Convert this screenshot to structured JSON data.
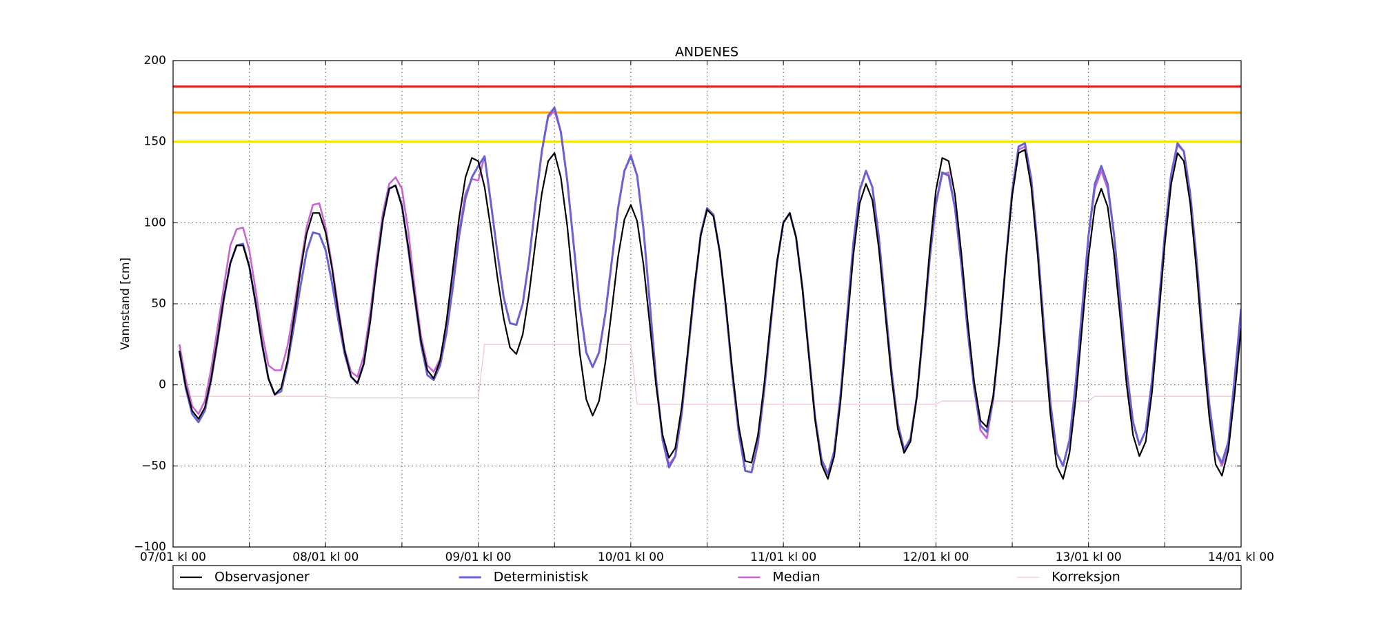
{
  "chart_data": {
    "type": "line",
    "title": "ANDENES",
    "y_label": "Vannstand [cm]",
    "xlim": [
      0,
      168
    ],
    "xticks": [
      {
        "value": 0,
        "label": "07/01 kl 00"
      },
      {
        "value": 24,
        "label": "08/01 kl 00"
      },
      {
        "value": 48,
        "label": "09/01 kl 00"
      },
      {
        "value": 72,
        "label": "10/01 kl 00"
      },
      {
        "value": 96,
        "label": "11/01 kl 00"
      },
      {
        "value": 120,
        "label": "12/01 kl 00"
      },
      {
        "value": 144,
        "label": "13/01 kl 00"
      },
      {
        "value": 168,
        "label": "14/01 kl 00"
      }
    ],
    "xticks_unlabeled": [
      12,
      36,
      60,
      84,
      108,
      132,
      156
    ],
    "ylim": [
      -100,
      200
    ],
    "yticks": [
      {
        "value": -100,
        "label": "−100"
      },
      {
        "value": -50,
        "label": "−50"
      },
      0,
      50,
      100,
      150,
      200
    ],
    "grid": true,
    "legend": "bottom",
    "hlines": [
      {
        "value": 184,
        "color": "#e31a1c"
      },
      {
        "value": 168,
        "color": "#ffa500"
      },
      {
        "value": 150,
        "color": "#f2e600"
      }
    ],
    "x": [
      1,
      2,
      3,
      4,
      5,
      6,
      7,
      8,
      9,
      10,
      11,
      12,
      13,
      14,
      15,
      16,
      17,
      18,
      19,
      20,
      21,
      22,
      23,
      24,
      25,
      26,
      27,
      28,
      29,
      30,
      31,
      32,
      33,
      34,
      35,
      36,
      37,
      38,
      39,
      40,
      41,
      42,
      43,
      44,
      45,
      46,
      47,
      48,
      49,
      50,
      51,
      52,
      53,
      54,
      55,
      56,
      57,
      58,
      59,
      60,
      61,
      62,
      63,
      64,
      65,
      66,
      67,
      68,
      69,
      70,
      71,
      72,
      73,
      74,
      75,
      76,
      77,
      78,
      79,
      80,
      81,
      82,
      83,
      84,
      85,
      86,
      87,
      88,
      89,
      90,
      91,
      92,
      93,
      94,
      95,
      96,
      97,
      98,
      99,
      100,
      101,
      102,
      103,
      104,
      105,
      106,
      107,
      108,
      109,
      110,
      111,
      112,
      113,
      114,
      115,
      116,
      117,
      118,
      119,
      120,
      121,
      122,
      123,
      124,
      125,
      126,
      127,
      128,
      129,
      130,
      131,
      132,
      133,
      134,
      135,
      136,
      137,
      138,
      139,
      140,
      141,
      142,
      143,
      144,
      145,
      146,
      147,
      148,
      149,
      150,
      151,
      152,
      153,
      154,
      155,
      156,
      157,
      158,
      159,
      160,
      161,
      162,
      163,
      164,
      165,
      166,
      167,
      168
    ],
    "series": [
      {
        "name": "Observasjoner",
        "color": "#000000",
        "width": 2.2,
        "values": [
          21,
          -1,
          -16,
          -21,
          -14,
          4,
          28,
          54,
          75,
          86,
          86,
          73,
          50,
          25,
          4,
          -6,
          -2,
          15,
          41,
          69,
          93,
          106,
          106,
          94,
          72,
          45,
          21,
          5,
          1,
          13,
          39,
          72,
          102,
          121,
          123,
          110,
          85,
          55,
          27,
          9,
          4,
          15,
          39,
          71,
          103,
          128,
          140,
          138,
          122,
          96,
          67,
          41,
          23,
          19,
          31,
          56,
          88,
          118,
          138,
          143,
          128,
          98,
          58,
          19,
          -9,
          -19,
          -10,
          14,
          46,
          79,
          102,
          111,
          101,
          74,
          37,
          -1,
          -31,
          -45,
          -39,
          -14,
          22,
          61,
          92,
          108,
          104,
          82,
          47,
          8,
          -26,
          -47,
          -48,
          -31,
          1,
          40,
          76,
          100,
          106,
          91,
          59,
          18,
          -22,
          -49,
          -58,
          -44,
          -10,
          35,
          80,
          112,
          124,
          114,
          85,
          45,
          5,
          -27,
          -42,
          -35,
          -7,
          36,
          82,
          120,
          140,
          138,
          117,
          81,
          39,
          2,
          -22,
          -26,
          -7,
          30,
          76,
          117,
          143,
          145,
          122,
          80,
          29,
          -18,
          -50,
          -58,
          -42,
          -8,
          36,
          79,
          110,
          121,
          110,
          81,
          41,
          0,
          -31,
          -44,
          -35,
          -4,
          40,
          87,
          124,
          143,
          138,
          112,
          70,
          22,
          -20,
          -49,
          -56,
          -40,
          -5,
          35
        ]
      },
      {
        "name": "Deterministisk",
        "color": "#6a62d4",
        "width": 3,
        "values": [
          21,
          -2,
          -18,
          -23,
          -16,
          3,
          27,
          53,
          75,
          86,
          87,
          73,
          50,
          25,
          4,
          -6,
          -4,
          13,
          36,
          60,
          82,
          94,
          93,
          83,
          63,
          40,
          19,
          5,
          1,
          13,
          39,
          72,
          102,
          121,
          123,
          111,
          84,
          54,
          25,
          6,
          3,
          12,
          32,
          60,
          92,
          115,
          128,
          135,
          141,
          112,
          82,
          54,
          38,
          37,
          50,
          77,
          112,
          144,
          166,
          171,
          156,
          126,
          87,
          48,
          20,
          11,
          20,
          44,
          76,
          109,
          132,
          141,
          129,
          96,
          50,
          3,
          -34,
          -51,
          -44,
          -18,
          20,
          58,
          93,
          109,
          105,
          82,
          46,
          5,
          -30,
          -53,
          -54,
          -36,
          -3,
          37,
          75,
          100,
          106,
          91,
          60,
          20,
          -20,
          -46,
          -55,
          -41,
          -6,
          41,
          87,
          120,
          132,
          122,
          92,
          50,
          9,
          -24,
          -40,
          -33,
          -7,
          33,
          77,
          112,
          131,
          129,
          109,
          74,
          33,
          -2,
          -25,
          -29,
          -9,
          29,
          77,
          120,
          147,
          149,
          127,
          85,
          35,
          -11,
          -42,
          -50,
          -34,
          2,
          47,
          92,
          124,
          135,
          124,
          93,
          52,
          9,
          -23,
          -37,
          -28,
          3,
          47,
          93,
          130,
          149,
          144,
          118,
          77,
          29,
          -12,
          -41,
          -48,
          -35,
          5,
          47
        ]
      },
      {
        "name": "Median",
        "color": "#c865d2",
        "width": 2.6,
        "values": [
          25,
          3,
          -13,
          -18,
          -10,
          10,
          35,
          61,
          86,
          96,
          97,
          83,
          58,
          32,
          12,
          9,
          9,
          24,
          46,
          72,
          97,
          111,
          112,
          97,
          74,
          47,
          22,
          8,
          5,
          18,
          44,
          77,
          106,
          124,
          128,
          121,
          95,
          60,
          30,
          12,
          8,
          16,
          36,
          64,
          95,
          118,
          127,
          126,
          141,
          112,
          82,
          54,
          38,
          37,
          50,
          77,
          112,
          144,
          165,
          169,
          156,
          126,
          87,
          48,
          20,
          11,
          20,
          44,
          76,
          109,
          132,
          142,
          129,
          96,
          50,
          3,
          -34,
          -49,
          -44,
          -18,
          20,
          58,
          93,
          109,
          105,
          82,
          46,
          5,
          -30,
          -53,
          -54,
          -36,
          -3,
          37,
          75,
          100,
          106,
          91,
          60,
          20,
          -20,
          -46,
          -55,
          -41,
          -6,
          41,
          87,
          120,
          132,
          122,
          92,
          50,
          9,
          -24,
          -40,
          -33,
          -7,
          33,
          77,
          111,
          130,
          131,
          109,
          74,
          33,
          -2,
          -28,
          -33,
          -9,
          29,
          77,
          120,
          145,
          147,
          127,
          85,
          35,
          -11,
          -42,
          -50,
          -34,
          2,
          47,
          92,
          121,
          132,
          121,
          93,
          52,
          9,
          -23,
          -37,
          -28,
          3,
          47,
          93,
          130,
          148,
          144,
          118,
          77,
          29,
          -12,
          -41,
          -50,
          -37,
          3,
          44
        ]
      },
      {
        "name": "Korreksjon",
        "color": "#f2c4d2",
        "width": 1.3,
        "values": [
          -7,
          -7,
          -7,
          -7,
          -7,
          -7,
          -7,
          -7,
          -7,
          -7,
          -7,
          -7,
          -7,
          -7,
          -7,
          -7,
          -7,
          -7,
          -7,
          -7,
          -7,
          -7,
          -7,
          -7,
          -8,
          -8,
          -8,
          -8,
          -8,
          -8,
          -8,
          -8,
          -8,
          -8,
          -8,
          -8,
          -8,
          -8,
          -8,
          -8,
          -8,
          -8,
          -8,
          -8,
          -8,
          -8,
          -8,
          -8,
          25,
          25,
          25,
          25,
          25,
          25,
          25,
          25,
          25,
          25,
          25,
          25,
          25,
          25,
          25,
          25,
          25,
          25,
          25,
          25,
          25,
          25,
          25,
          25,
          -12,
          -12,
          -12,
          -12,
          -12,
          -12,
          -12,
          -12,
          -12,
          -12,
          -12,
          -12,
          -12,
          -12,
          -12,
          -12,
          -12,
          -12,
          -12,
          -12,
          -12,
          -12,
          -12,
          -12,
          -12,
          -12,
          -12,
          -12,
          -12,
          -12,
          -12,
          -12,
          -12,
          -12,
          -12,
          -12,
          -12,
          -12,
          -12,
          -12,
          -12,
          -12,
          -12,
          -12,
          -12,
          -12,
          -12,
          -12,
          -10,
          -10,
          -10,
          -10,
          -10,
          -10,
          -10,
          -10,
          -10,
          -10,
          -10,
          -10,
          -10,
          -10,
          -10,
          -10,
          -10,
          -10,
          -10,
          -10,
          -10,
          -10,
          -10,
          -10,
          -7,
          -7,
          -7,
          -7,
          -7,
          -7,
          -7,
          -7,
          -7,
          -7,
          -7,
          -7,
          -7,
          -7,
          -7,
          -7,
          -7,
          -7,
          -7,
          -7,
          -7,
          -7,
          -7,
          -7
        ]
      }
    ]
  }
}
